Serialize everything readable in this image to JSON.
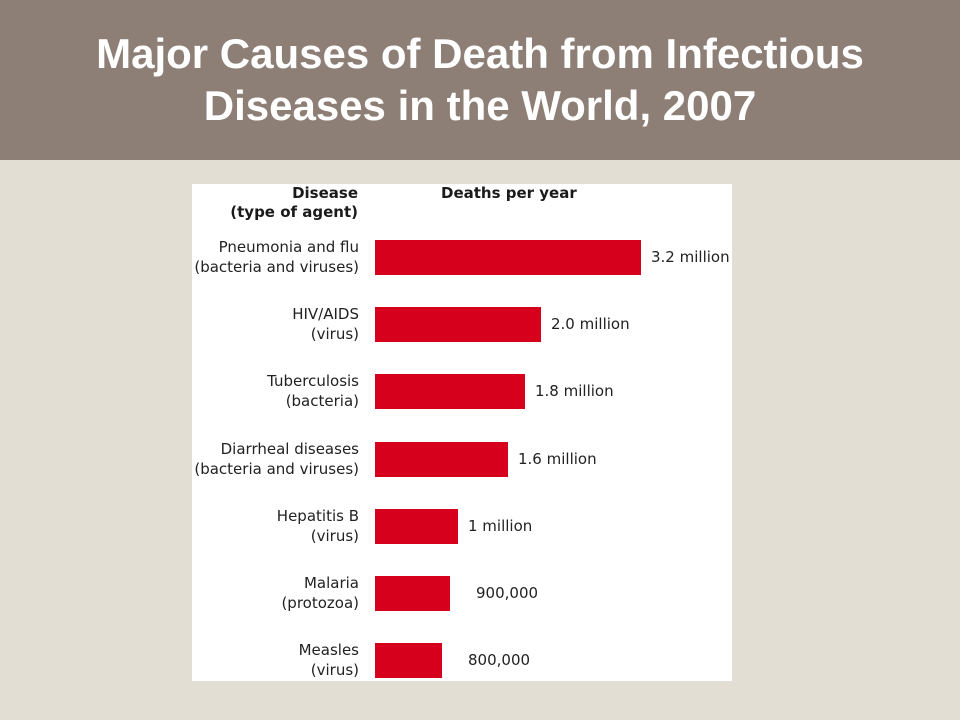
{
  "slide": {
    "title_line1": "Major Causes of Death from Infectious",
    "title_line2": "Diseases in the World, 2007"
  },
  "chart_data": {
    "type": "bar",
    "orientation": "horizontal",
    "title": "Major Causes of Death from Infectious Diseases in the World, 2007",
    "category_header": [
      "Disease",
      "(type of agent)"
    ],
    "value_header": "Deaths per year",
    "categories": [
      {
        "name": "Pneumonia and flu",
        "agent": "(bacteria and viruses)"
      },
      {
        "name": "HIV/AIDS",
        "agent": "(virus)"
      },
      {
        "name": "Tuberculosis",
        "agent": "(bacteria)"
      },
      {
        "name": "Diarrheal diseases",
        "agent": "(bacteria and viruses)"
      },
      {
        "name": "Hepatitis B",
        "agent": "(virus)"
      },
      {
        "name": "Malaria",
        "agent": "(protozoa)"
      },
      {
        "name": "Measles",
        "agent": "(virus)"
      }
    ],
    "values": [
      3200000,
      2000000,
      1800000,
      1600000,
      1000000,
      900000,
      800000
    ],
    "value_labels": [
      "3.2 million",
      "2.0 million",
      "1.8 million",
      "1.6 million",
      "1 million",
      "900,000",
      "800,000"
    ],
    "bar_color": "#d6001c",
    "grid": false,
    "legend": "none"
  }
}
